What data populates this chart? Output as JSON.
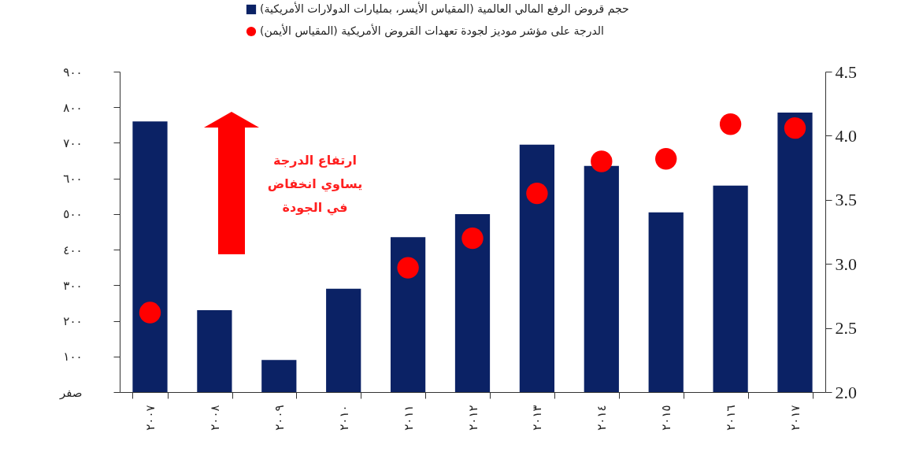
{
  "chart_data": {
    "type": "bar",
    "categories": [
      "٢٠٠٧",
      "٢٠٠٨",
      "٢٠٠٩",
      "٢٠١٠",
      "٢٠١١",
      "٢٠١٢",
      "٢٠١٣",
      "٢٠١٤",
      "٢٠١٥",
      "٢٠١٦",
      "٢٠١٧"
    ],
    "series": [
      {
        "name": "حجم قروض الرفع المالي العالمية (المقياس الأيسر، بمليارات الدولارات الأمريكية)",
        "color": "#0b2265",
        "values": [
          760,
          230,
          90,
          290,
          435,
          500,
          695,
          635,
          505,
          580,
          785
        ]
      },
      {
        "name": "الدرجة على مؤشر موديز لجودة تعهدات القروض الأمريكية (المقياس الأيمن)",
        "type": "scatter",
        "axis": "y2",
        "color": "#ff0000",
        "values": [
          2.62,
          null,
          null,
          null,
          2.97,
          3.2,
          3.55,
          3.8,
          3.82,
          4.09,
          4.06
        ]
      }
    ],
    "ylim": [
      0,
      900
    ],
    "yticks": [
      {
        "value": 0,
        "label": "صفر"
      },
      {
        "value": 100,
        "label": "١٠٠"
      },
      {
        "value": 200,
        "label": "٢٠٠"
      },
      {
        "value": 300,
        "label": "٣٠٠"
      },
      {
        "value": 400,
        "label": "٤٠٠"
      },
      {
        "value": 500,
        "label": "٥٠٠"
      },
      {
        "value": 600,
        "label": "٦٠٠"
      },
      {
        "value": 700,
        "label": "٧٠٠"
      },
      {
        "value": 800,
        "label": "٨٠٠"
      },
      {
        "value": 900,
        "label": "٩٠٠"
      }
    ],
    "y2lim": [
      2,
      4.5
    ],
    "y2ticks": [
      {
        "value": 2,
        "label": "2.0"
      },
      {
        "value": 2.5,
        "label": "2.5"
      },
      {
        "value": 3,
        "label": "3.0"
      },
      {
        "value": 3.5,
        "label": "3.5"
      },
      {
        "value": 4,
        "label": "4.0"
      },
      {
        "value": 4.5,
        "label": "4.5"
      }
    ],
    "legend": "top",
    "marker": "circle",
    "grid": false,
    "annotations": [
      "ارتفاع الدرجة يساوي انخفاض في الجودة"
    ]
  }
}
